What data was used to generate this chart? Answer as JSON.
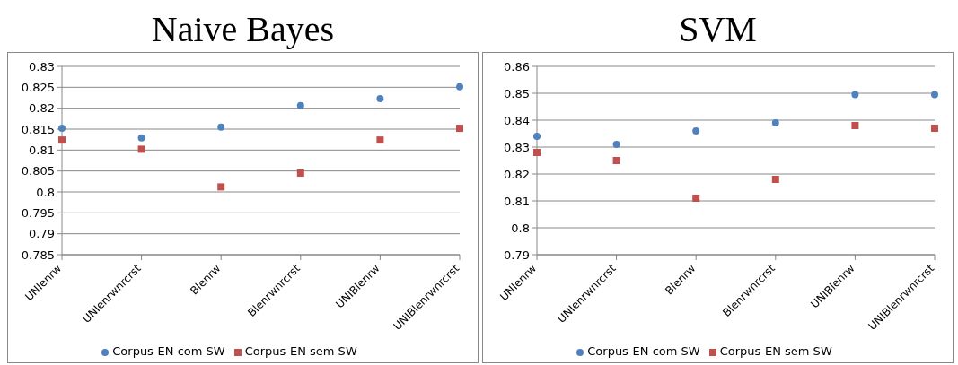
{
  "chart_data": [
    {
      "type": "scatter",
      "title": "Naive Bayes",
      "categories": [
        "UNIenrw",
        "UNIenrwnrcrst",
        "Blenrw",
        "Blenrwnrcrst",
        "UNIBlenrw",
        "UNIBlenrwnrcrst"
      ],
      "series": [
        {
          "name": "Corpus-EN com SW",
          "color": "#4f81bd",
          "marker": "circle",
          "values": [
            0.8152,
            0.8129,
            0.8155,
            0.8206,
            0.8223,
            0.8251
          ]
        },
        {
          "name": "Corpus-EN sem SW",
          "color": "#c0504d",
          "marker": "square",
          "values": [
            0.8124,
            0.8102,
            0.8012,
            0.8045,
            0.8124,
            0.8152
          ]
        }
      ],
      "ylim": [
        0.785,
        0.83
      ],
      "yticks": [
        0.785,
        0.79,
        0.795,
        0.8,
        0.805,
        0.81,
        0.815,
        0.82,
        0.825,
        0.83
      ],
      "grid": "y",
      "legend": "bottom"
    },
    {
      "type": "scatter",
      "title": "SVM",
      "categories": [
        "UNIenrw",
        "UNIenrwnrcrst",
        "Blenrw",
        "Blenrwnrcrst",
        "UNIBlenrw",
        "UNIBlenrwnrcrst"
      ],
      "series": [
        {
          "name": "Corpus-EN com SW",
          "color": "#4f81bd",
          "marker": "circle",
          "values": [
            0.834,
            0.831,
            0.836,
            0.839,
            0.8495,
            0.8495
          ]
        },
        {
          "name": "Corpus-EN sem SW",
          "color": "#c0504d",
          "marker": "square",
          "values": [
            0.828,
            0.825,
            0.811,
            0.818,
            0.838,
            0.837
          ]
        }
      ],
      "ylim": [
        0.79,
        0.86
      ],
      "yticks": [
        0.79,
        0.8,
        0.81,
        0.82,
        0.83,
        0.84,
        0.85,
        0.86
      ],
      "grid": "y",
      "legend": "bottom"
    }
  ]
}
